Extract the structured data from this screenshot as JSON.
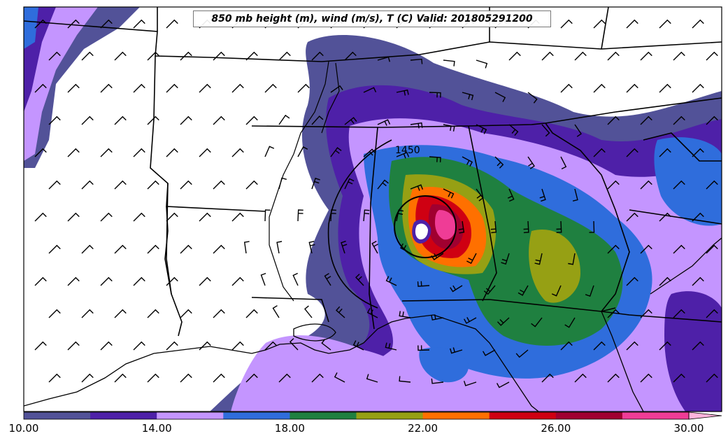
{
  "title": "850 mb height (m), wind (m/s), T (C) Valid: 201805291200",
  "contour_label": "1450",
  "colorbar": {
    "colors": [
      "#525298",
      "#4e20a8",
      "#c495ff",
      "#2f6ddc",
      "#1f8040",
      "#96a014",
      "#ff7000",
      "#cf0012",
      "#a00030",
      "#ef3c96",
      "#ffb4dc"
    ],
    "ticks": [
      "10.00",
      "14.00",
      "18.00",
      "22.00",
      "26.00",
      "30.00"
    ]
  }
}
